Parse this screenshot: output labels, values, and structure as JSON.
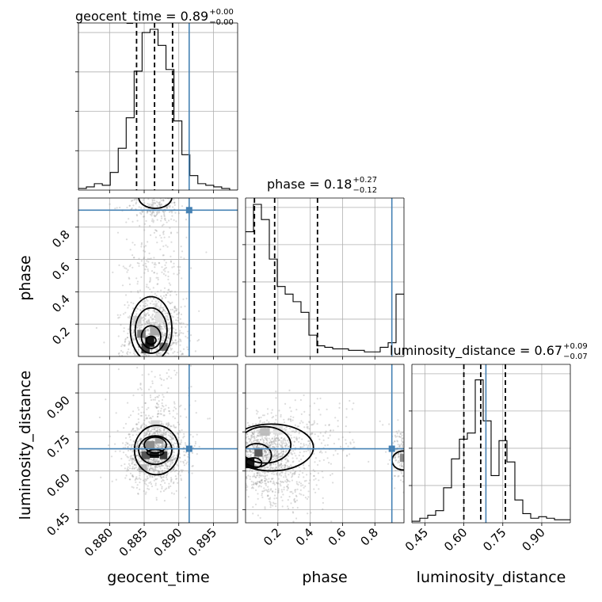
{
  "chart_data": {
    "type": "corner",
    "parameters": [
      "geocent_time",
      "phase",
      "luminosity_distance"
    ],
    "ranges": {
      "geocent_time": [
        0.8755,
        0.8985
      ],
      "phase": [
        0.0,
        0.98
      ],
      "luminosity_distance": [
        0.4,
        1.01
      ]
    },
    "grid": true,
    "truth_color": "#4682b4",
    "titles": [
      {
        "name": "geocent_time",
        "median": "0.89",
        "plus": "+0.00",
        "minus": "−0.00"
      },
      {
        "name": "phase",
        "median": "0.18",
        "plus": "+0.27",
        "minus": "−0.12"
      },
      {
        "name": "luminosity_distance",
        "median": "0.67",
        "plus": "+0.09",
        "minus": "−0.07"
      }
    ],
    "truths": {
      "geocent_time": 0.8915,
      "phase": 0.905,
      "luminosity_distance": 0.685
    },
    "quantiles": {
      "geocent_time": [
        0.8839,
        0.8865,
        0.8891
      ],
      "phase": [
        0.055,
        0.18,
        0.445
      ],
      "luminosity_distance": [
        0.6,
        0.665,
        0.76
      ]
    },
    "xticks": {
      "geocent_time": [
        "0.880",
        "0.885",
        "0.890",
        "0.895"
      ],
      "phase": [
        "0.2",
        "0.4",
        "0.6",
        "0.8"
      ],
      "luminosity_distance": [
        "0.45",
        "0.60",
        "0.75",
        "0.90"
      ]
    },
    "yticks": {
      "phase": [
        "0.2",
        "0.4",
        "0.6",
        "0.8"
      ],
      "luminosity_distance": [
        "0.45",
        "0.60",
        "0.75",
        "0.90"
      ]
    },
    "hist_geocent_time": {
      "edges_start": 0.8755,
      "bin_width": 0.00115,
      "heights": [
        0.01,
        0.02,
        0.04,
        0.03,
        0.11,
        0.26,
        0.45,
        0.74,
        0.98,
        1.0,
        0.9,
        0.75,
        0.43,
        0.22,
        0.09,
        0.04,
        0.03,
        0.02,
        0.01,
        0.0
      ]
    },
    "hist_phase": {
      "edges_start": 0.0,
      "bin_width": 0.049,
      "heights": [
        0.82,
        1.0,
        0.9,
        0.64,
        0.46,
        0.41,
        0.36,
        0.29,
        0.14,
        0.07,
        0.06,
        0.05,
        0.05,
        0.04,
        0.04,
        0.03,
        0.03,
        0.06,
        0.09,
        0.41
      ]
    },
    "hist_luminosity_distance": {
      "edges_start": 0.4,
      "bin_width": 0.0305,
      "heights": [
        0.01,
        0.03,
        0.05,
        0.08,
        0.23,
        0.42,
        0.55,
        0.59,
        0.94,
        0.67,
        0.31,
        0.54,
        0.4,
        0.15,
        0.06,
        0.03,
        0.04,
        0.03,
        0.02,
        0.02
      ]
    }
  },
  "labels": {
    "x_geocent_time": "geocent_time",
    "x_phase": "phase",
    "x_luminosity_distance": "luminosity_distance",
    "y_phase": "phase",
    "y_luminosity_distance": "luminosity_distance"
  }
}
